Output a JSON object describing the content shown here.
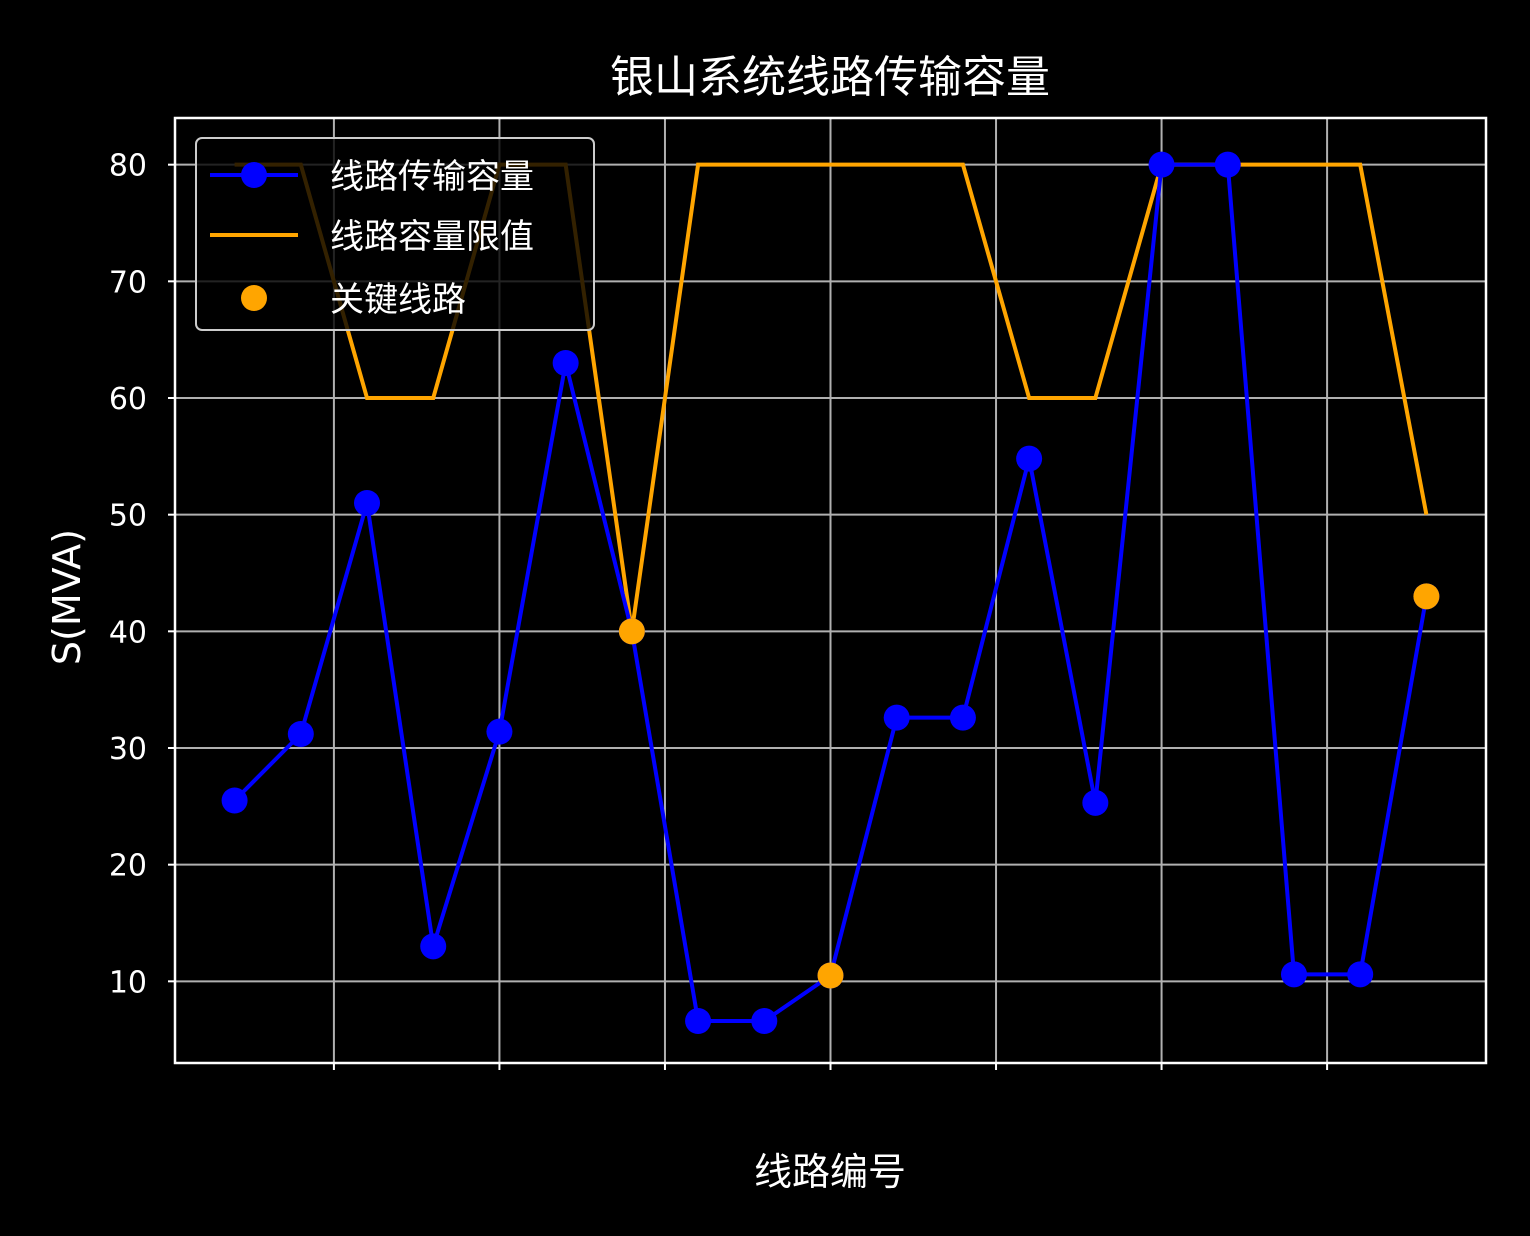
{
  "chart_data": {
    "type": "line",
    "title": "银山系统线路传输容量",
    "xlabel": "线路编号",
    "ylabel": "S(MVA)",
    "x": [
      1,
      2,
      3,
      4,
      5,
      6,
      7,
      8,
      9,
      10,
      11,
      12,
      13,
      14,
      15,
      16,
      17,
      18,
      19
    ],
    "ylim": [
      3,
      84
    ],
    "yticks": [
      10,
      20,
      30,
      40,
      50,
      60,
      70,
      80
    ],
    "xticks": [
      2.5,
      5,
      7.5,
      10,
      12.5,
      15,
      17.5
    ],
    "xticklabels_visible": false,
    "grid": true,
    "legend_position": "upper-left",
    "series": [
      {
        "name": "线路传输容量",
        "kind": "line-marker",
        "color": "#0000ff",
        "values": [
          25.5,
          31.2,
          51.0,
          13.0,
          31.4,
          63.0,
          40.0,
          6.6,
          6.6,
          10.5,
          32.6,
          32.6,
          54.8,
          25.3,
          80.0,
          80.0,
          10.6,
          10.6,
          43.0
        ]
      },
      {
        "name": "线路容量限值",
        "kind": "line",
        "color": "#ffa500",
        "values": [
          80,
          80,
          60,
          60,
          80,
          80,
          40,
          80,
          80,
          80,
          80,
          80,
          60,
          60,
          80,
          80,
          80,
          80,
          50
        ]
      },
      {
        "name": "关键线路",
        "kind": "scatter",
        "color": "#ffa500",
        "points": [
          {
            "x": 7,
            "y": 40.0
          },
          {
            "x": 10,
            "y": 10.5
          },
          {
            "x": 19,
            "y": 43.0
          }
        ]
      }
    ]
  }
}
